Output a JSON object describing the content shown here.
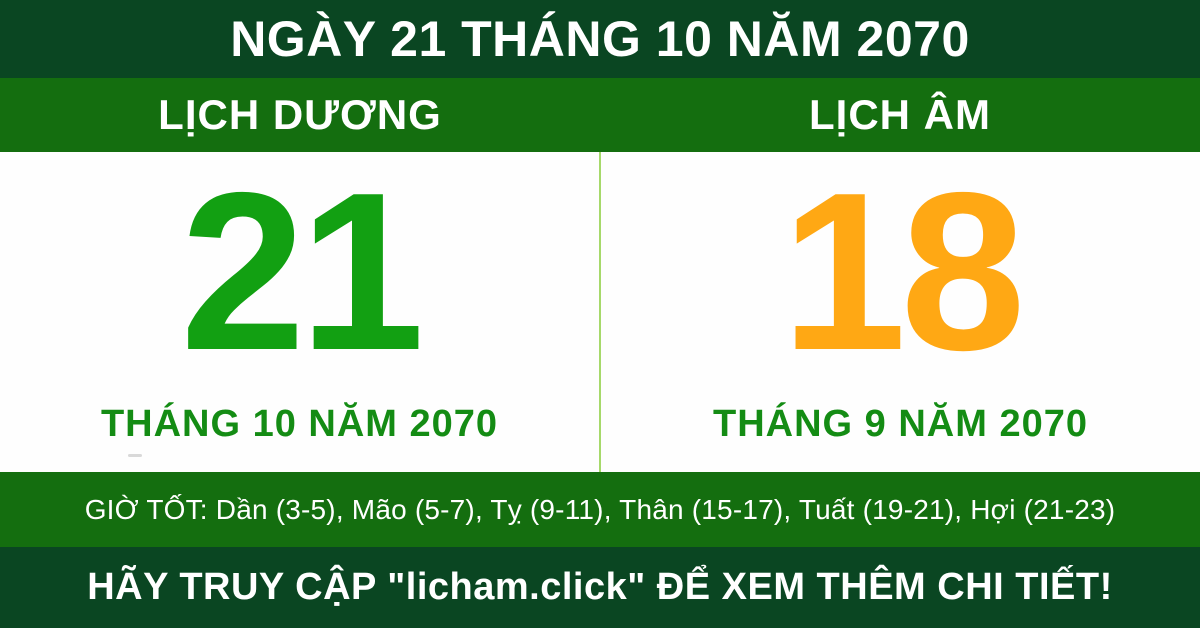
{
  "header": {
    "title": "NGÀY 21 THÁNG 10 NĂM 2070"
  },
  "calendars": {
    "solar": {
      "label": "LỊCH DƯƠNG",
      "day": "21",
      "month_year": "THÁNG 10 NĂM 2070"
    },
    "lunar": {
      "label": "LỊCH ÂM",
      "day": "18",
      "month_year": "THÁNG 9 NĂM 2070"
    }
  },
  "good_hours": {
    "text": "GIỜ TỐT: Dần (3-5), Mão (5-7), Tỵ (9-11), Thân (15-17), Tuất (19-21), Hợi (21-23)"
  },
  "footer": {
    "text": "HÃY TRUY CẬP \"licham.click\" ĐỂ XEM THÊM CHI TIẾT!"
  },
  "colors": {
    "dark_green": "#0A4622",
    "bright_green": "#146E0F",
    "solar_day_green": "#12A012",
    "lunar_day_orange": "#FFA814",
    "month_label_green": "#148C14",
    "divider_light_green": "#A6D96A",
    "text_white": "#FFFFFF",
    "background_white": "#FEFEFE"
  }
}
